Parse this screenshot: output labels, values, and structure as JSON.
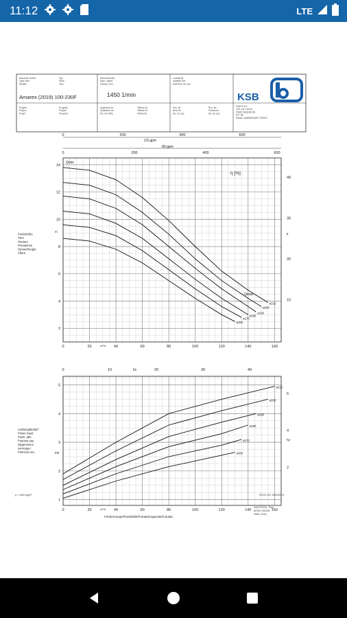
{
  "status_bar": {
    "time": "11:12",
    "network": "LTE",
    "icons": [
      "gear-icon",
      "gear-icon",
      "sd-card-icon",
      "signal-icon",
      "battery-icon"
    ],
    "color": "#1565a9"
  },
  "title_block": {
    "labels_col1": [
      "Baureihe-Größe",
      "Type-Size",
      "Modèle",
      "Projekt",
      "Project",
      "Projet"
    ],
    "labels_col1_values": [
      "Typ",
      "Serie",
      "Tipo",
      "Progetto",
      "Projekt",
      "Proyecto"
    ],
    "pump_name": "Amarex (2019) 100-230F",
    "speed": "1450 1/min",
    "brand": "KSB",
    "headers_col2": [
      "Nenndrehzahl",
      "Nom. speed",
      "Vitesse nom."
    ],
    "headers_col3": [
      "Laufrad-Ø",
      "Impeller Dia.",
      "Diamètre de roue"
    ],
    "company_lines": [
      "KSB S.A.S.",
      "128, rue Carnot",
      "59320 SEQUEDIN",
      "B.P. 85",
      "59462 LAMBERSART CEDEX"
    ],
    "col2_lower": [
      "Angebots-Nr.",
      "Quotation No.",
      "No. de l'offre"
    ],
    "col2_lower_b": [
      "Offerte-Nr.",
      "Offerta-Nr.",
      "Oferta-Nr."
    ],
    "col3_lower": [
      "Pos.-Nr.",
      "Item No.",
      "No. de pos."
    ],
    "col3_lower_b": [
      "Pos. Nr.",
      "Posizione",
      "No. de pos."
    ]
  },
  "chart_data": [
    {
      "type": "line",
      "ylabel_lines": [
        "Förderhöhe",
        "TDH",
        "Hauteur",
        "Prevalenza",
        "Opvoerhoogte",
        "Altura"
      ],
      "ylabel_unit": "m",
      "ylabel_right": "η [%]",
      "right_unit": "ft",
      "top_axis_1_label": "US.gpm",
      "top_axis_1_ticks": [
        "0",
        "200",
        "400",
        "600"
      ],
      "top_axis_2_label": "IM.gpm",
      "top_axis_2_ticks": [
        "0",
        "200",
        "400",
        "600"
      ],
      "xunit": "m³/h",
      "xticks": [
        "0",
        "20",
        "40",
        "60",
        "80",
        "100",
        "120",
        "140",
        "160"
      ],
      "xlim": [
        0,
        165
      ],
      "yticks": [
        "2",
        "4",
        "6",
        "8",
        "10",
        "12",
        "14"
      ],
      "ylim": [
        1,
        14.5
      ],
      "right_ticks": [
        "10",
        "20",
        "30",
        "40"
      ],
      "qmin_label": "Qmin",
      "qmax_label": "Qmax",
      "series": [
        {
          "name": "ø210",
          "points": [
            [
              0,
              13.8
            ],
            [
              20,
              13.6
            ],
            [
              40,
              12.9
            ],
            [
              60,
              11.6
            ],
            [
              80,
              9.9
            ],
            [
              100,
              8.0
            ],
            [
              120,
              6.2
            ],
            [
              140,
              4.8
            ],
            [
              155,
              3.9
            ]
          ]
        },
        {
          "name": "ø200",
          "points": [
            [
              0,
              12.7
            ],
            [
              20,
              12.5
            ],
            [
              40,
              11.8
            ],
            [
              60,
              10.5
            ],
            [
              80,
              8.9
            ],
            [
              100,
              7.1
            ],
            [
              120,
              5.5
            ],
            [
              140,
              4.2
            ],
            [
              150,
              3.6
            ]
          ]
        },
        {
          "name": "ø190",
          "points": [
            [
              0,
              11.7
            ],
            [
              20,
              11.5
            ],
            [
              40,
              10.8
            ],
            [
              60,
              9.6
            ],
            [
              80,
              8.0
            ],
            [
              100,
              6.4
            ],
            [
              120,
              4.9
            ],
            [
              140,
              3.6
            ],
            [
              146,
              3.2
            ]
          ]
        },
        {
          "name": "ø180",
          "points": [
            [
              0,
              10.6
            ],
            [
              20,
              10.4
            ],
            [
              40,
              9.7
            ],
            [
              60,
              8.6
            ],
            [
              80,
              7.1
            ],
            [
              100,
              5.6
            ],
            [
              120,
              4.2
            ],
            [
              140,
              3.0
            ]
          ]
        },
        {
          "name": "ø170",
          "points": [
            [
              0,
              9.6
            ],
            [
              20,
              9.4
            ],
            [
              40,
              8.8
            ],
            [
              60,
              7.7
            ],
            [
              80,
              6.3
            ],
            [
              100,
              4.9
            ],
            [
              120,
              3.6
            ],
            [
              135,
              2.8
            ]
          ]
        },
        {
          "name": "ø160",
          "points": [
            [
              0,
              8.6
            ],
            [
              20,
              8.4
            ],
            [
              40,
              7.8
            ],
            [
              60,
              6.8
            ],
            [
              80,
              5.5
            ],
            [
              100,
              4.2
            ],
            [
              120,
              3.0
            ],
            [
              130,
              2.5
            ]
          ]
        }
      ]
    },
    {
      "type": "line",
      "ylabel_lines": [
        "Leistungsbedarf",
        "Power Input",
        "Puiss. abs.",
        "Potenza ass.",
        "Opgenomen",
        "vermogen",
        "Potencia nec."
      ],
      "ylabel_unit": "kW",
      "right_unit": "hp",
      "top_axis_label": "l/s",
      "top_axis_ticks": [
        "0",
        "10",
        "20",
        "30",
        "40"
      ],
      "xunit": "m³/h",
      "xlabel": "Fördermenge/Flow/Débit/Portata/Capaciteit/Caudal",
      "xticks": [
        "0",
        "20",
        "40",
        "60",
        "80",
        "100",
        "120",
        "140",
        "160"
      ],
      "xlim": [
        0,
        165
      ],
      "yticks": [
        "1",
        "2",
        "3",
        "4",
        "5"
      ],
      "ylim": [
        0.8,
        5.3
      ],
      "right_ticks": [
        "2",
        "4",
        "6"
      ],
      "series": [
        {
          "name": "ø210",
          "points": [
            [
              0,
              1.9
            ],
            [
              40,
              3.0
            ],
            [
              80,
              4.0
            ],
            [
              120,
              4.5
            ],
            [
              160,
              4.95
            ]
          ]
        },
        {
          "name": "ø200",
          "points": [
            [
              0,
              1.7
            ],
            [
              40,
              2.7
            ],
            [
              80,
              3.6
            ],
            [
              120,
              4.1
            ],
            [
              155,
              4.5
            ]
          ]
        },
        {
          "name": "ø190",
          "points": [
            [
              0,
              1.5
            ],
            [
              40,
              2.4
            ],
            [
              80,
              3.2
            ],
            [
              120,
              3.7
            ],
            [
              146,
              4.0
            ]
          ]
        },
        {
          "name": "ø180",
          "points": [
            [
              0,
              1.35
            ],
            [
              40,
              2.15
            ],
            [
              80,
              2.85
            ],
            [
              120,
              3.3
            ],
            [
              140,
              3.6
            ]
          ]
        },
        {
          "name": "ø170",
          "points": [
            [
              0,
              1.2
            ],
            [
              40,
              1.9
            ],
            [
              80,
              2.5
            ],
            [
              120,
              2.9
            ],
            [
              135,
              3.1
            ]
          ]
        },
        {
          "name": "ø160",
          "points": [
            [
              0,
              1.05
            ],
            [
              40,
              1.65
            ],
            [
              80,
              2.15
            ],
            [
              120,
              2.55
            ],
            [
              130,
              2.65
            ]
          ]
        }
      ]
    }
  ],
  "footer": {
    "left_note": "ρ = 1000 kg/m³",
    "right_code": "K0370.151 1000/30FG",
    "sig_lines": [
      "SAUTOSTA, Théo",
      "A9740 100225",
      "2008 / 5131"
    ]
  }
}
